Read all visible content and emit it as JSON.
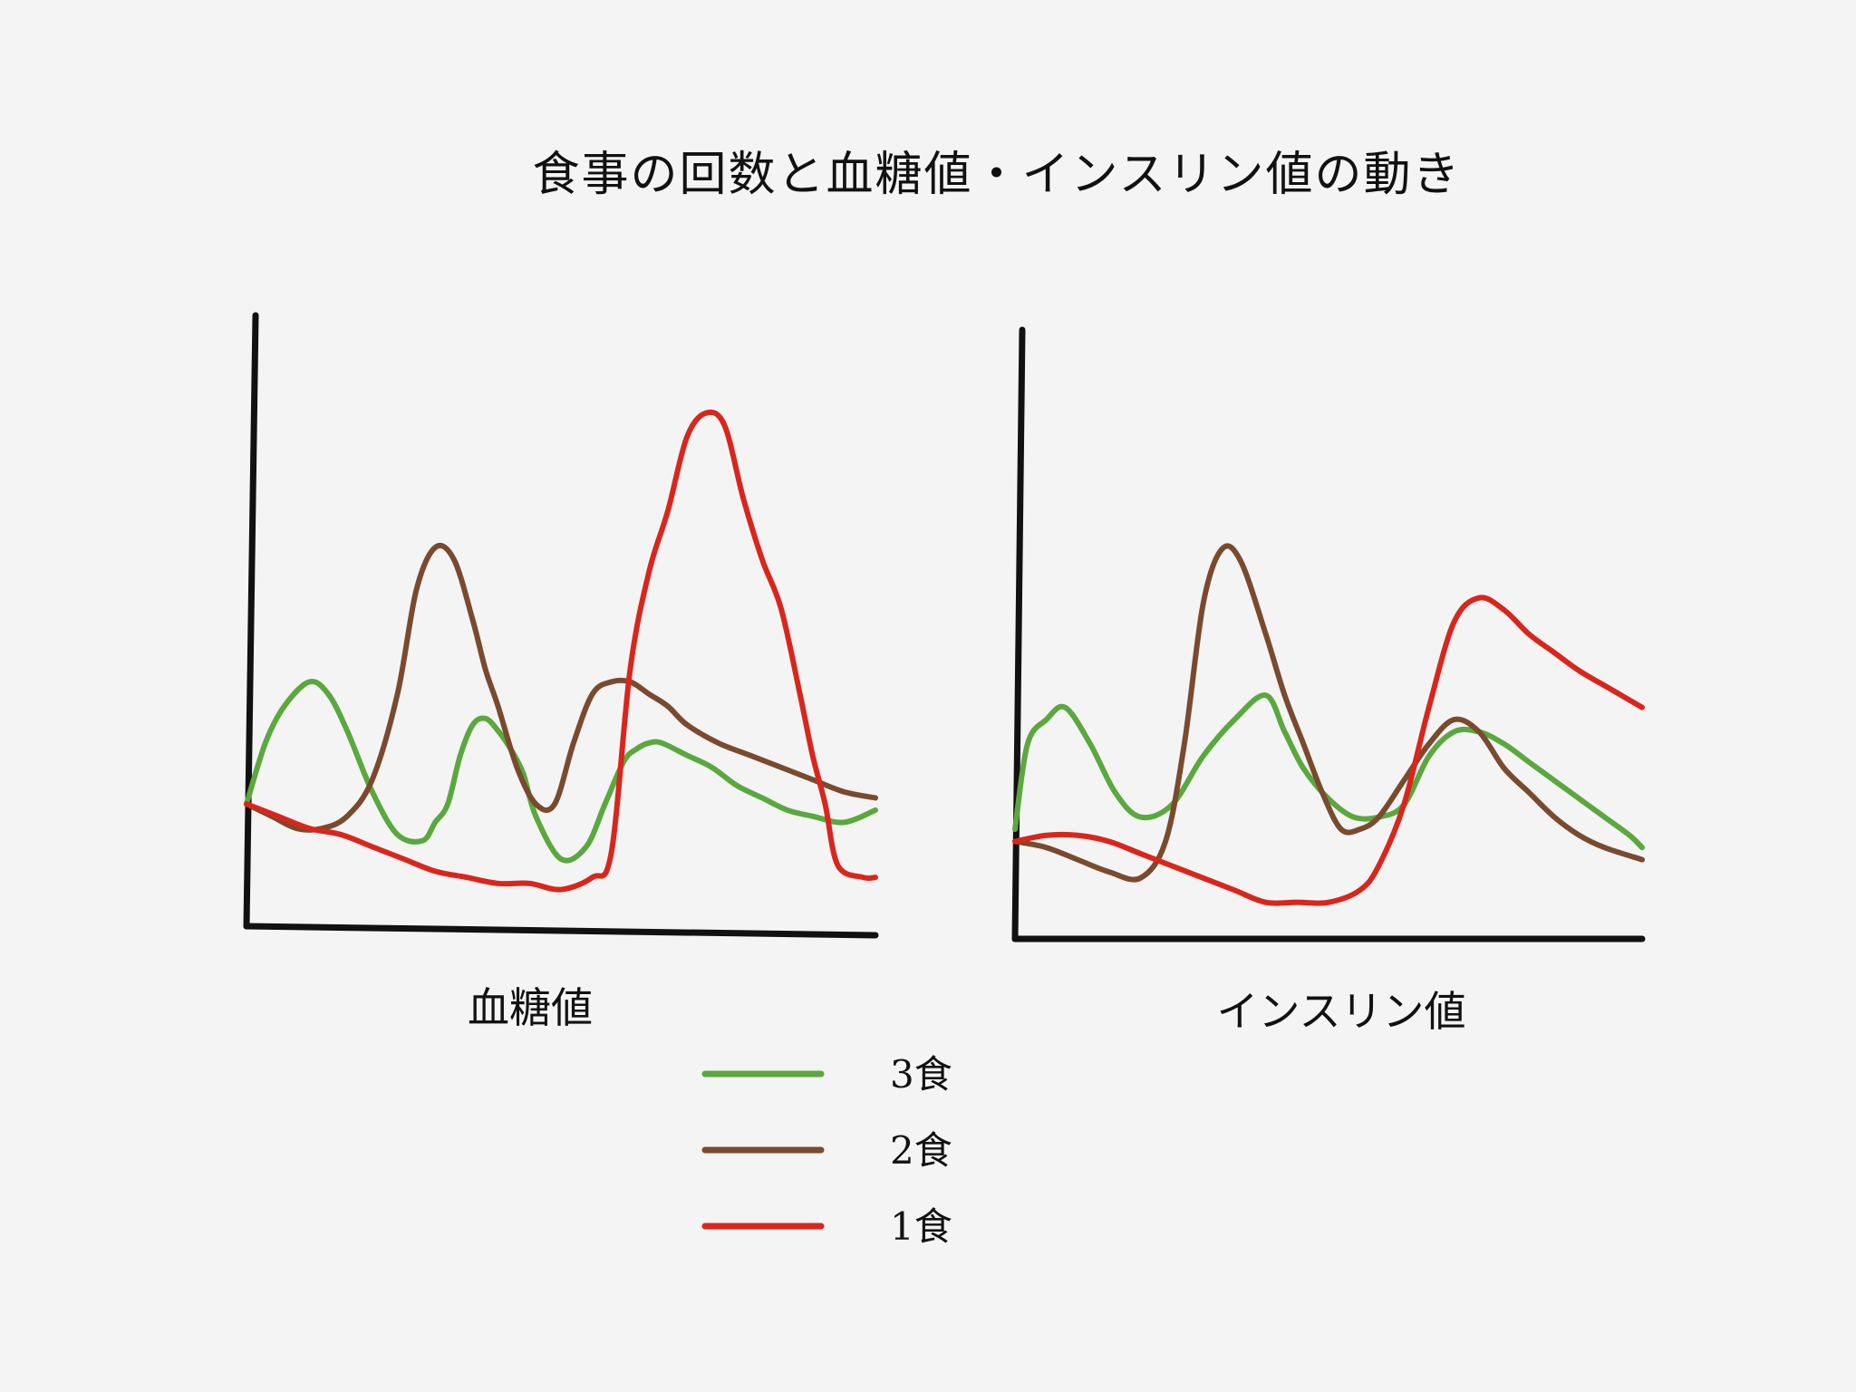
{
  "title": "食事の回数と血糖値・インスリン値の動き",
  "colors": {
    "3食": "#5aa83e",
    "2食": "#7a4a2e",
    "1食": "#d9261c",
    "axis": "#111111"
  },
  "legend": [
    {
      "label": "3食",
      "color": "#5aa83e"
    },
    {
      "label": "2食",
      "color": "#7a4a2e"
    },
    {
      "label": "1食",
      "color": "#d9261c"
    }
  ],
  "chart_data": [
    {
      "type": "line",
      "title": "",
      "xlabel": "血糖値",
      "ylabel": "",
      "xlim": [
        0,
        100
      ],
      "ylim": [
        0,
        100
      ],
      "grid": false,
      "series": [
        {
          "name": "3食",
          "color": "#5aa83e",
          "x": [
            0,
            3,
            6,
            10,
            13,
            16,
            20,
            24,
            28,
            30,
            32,
            34,
            36,
            38,
            40,
            42,
            44,
            46,
            50,
            54,
            57,
            60,
            62,
            64,
            66,
            70,
            74,
            78,
            82,
            86,
            90,
            95,
            100
          ],
          "y": [
            20,
            30,
            36,
            40,
            38,
            32,
            22,
            15,
            14,
            17,
            20,
            28,
            33,
            34,
            32,
            29,
            25,
            18,
            11,
            13,
            20,
            27,
            29,
            30,
            30,
            28,
            26,
            23,
            21,
            19,
            18,
            17,
            19
          ]
        },
        {
          "name": "2食",
          "color": "#7a4a2e",
          "x": [
            0,
            4,
            8,
            12,
            16,
            20,
            24,
            27,
            30,
            33,
            36,
            38,
            40,
            43,
            46,
            49,
            52,
            55,
            58,
            61,
            64,
            67,
            70,
            75,
            80,
            85,
            90,
            95,
            100
          ],
          "y": [
            20,
            18,
            16,
            16,
            18,
            24,
            38,
            55,
            62,
            60,
            50,
            42,
            36,
            26,
            20,
            20,
            30,
            38,
            40,
            40,
            38,
            36,
            33,
            30,
            28,
            26,
            24,
            22,
            21
          ]
        },
        {
          "name": "1食",
          "color": "#d9261c",
          "x": [
            0,
            5,
            10,
            15,
            20,
            25,
            30,
            35,
            40,
            45,
            50,
            55,
            58,
            61,
            64,
            67,
            70,
            73,
            76,
            79,
            82,
            85,
            88,
            90,
            92,
            94,
            98,
            100
          ],
          "y": [
            20,
            18,
            16,
            15,
            13,
            11,
            9,
            8,
            7,
            7,
            6,
            8,
            12,
            42,
            58,
            68,
            80,
            84,
            82,
            70,
            60,
            52,
            38,
            28,
            20,
            10,
            8,
            8
          ]
        }
      ]
    },
    {
      "type": "line",
      "title": "",
      "xlabel": "インスリン値",
      "ylabel": "",
      "xlim": [
        0,
        100
      ],
      "ylim": [
        0,
        100
      ],
      "grid": false,
      "series": [
        {
          "name": "3食",
          "color": "#5aa83e",
          "x": [
            0,
            2,
            5,
            8,
            12,
            16,
            20,
            25,
            30,
            35,
            40,
            43,
            46,
            50,
            54,
            58,
            62,
            66,
            70,
            74,
            78,
            82,
            86,
            90,
            94,
            98,
            100
          ],
          "y": [
            18,
            32,
            36,
            38,
            32,
            24,
            20,
            22,
            30,
            36,
            40,
            34,
            28,
            23,
            20,
            20,
            22,
            30,
            34,
            34,
            32,
            29,
            26,
            23,
            20,
            17,
            15
          ]
        },
        {
          "name": "2食",
          "color": "#7a4a2e",
          "x": [
            0,
            5,
            10,
            15,
            20,
            24,
            27,
            30,
            33,
            36,
            40,
            43,
            46,
            49,
            52,
            55,
            58,
            62,
            66,
            70,
            74,
            78,
            82,
            86,
            90,
            94,
            100
          ],
          "y": [
            16,
            15,
            13,
            11,
            10,
            16,
            32,
            55,
            64,
            62,
            50,
            40,
            32,
            24,
            18,
            18,
            20,
            26,
            32,
            36,
            34,
            28,
            24,
            20,
            17,
            15,
            13
          ]
        },
        {
          "name": "1食",
          "color": "#d9261c",
          "x": [
            0,
            5,
            10,
            15,
            20,
            25,
            30,
            35,
            40,
            45,
            50,
            55,
            58,
            62,
            66,
            70,
            74,
            78,
            82,
            86,
            90,
            95,
            100
          ],
          "y": [
            16,
            17,
            17,
            16,
            14,
            12,
            10,
            8,
            6,
            6,
            6,
            8,
            12,
            22,
            38,
            52,
            56,
            54,
            50,
            47,
            44,
            41,
            38
          ]
        }
      ]
    }
  ]
}
